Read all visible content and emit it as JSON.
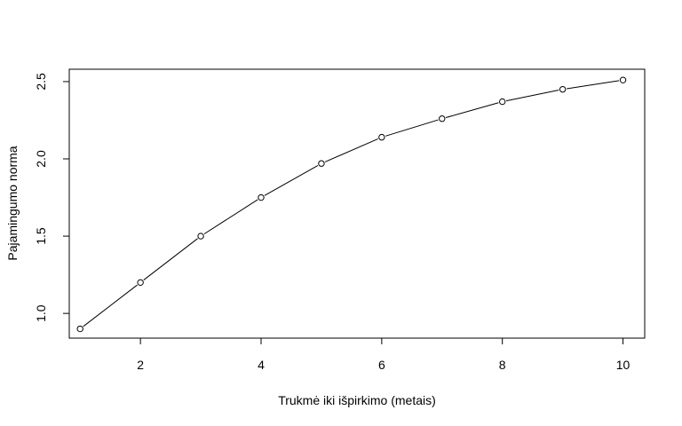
{
  "chart_data": {
    "type": "line",
    "title": "",
    "xlabel": "Trukmė iki išpirkimo (metais)",
    "ylabel": "Pajamingumo norma",
    "x": [
      1,
      2,
      3,
      4,
      5,
      6,
      7,
      8,
      9,
      10
    ],
    "series": [
      {
        "name": "",
        "values": [
          0.9,
          1.2,
          1.5,
          1.75,
          1.97,
          2.14,
          2.26,
          2.37,
          2.45,
          2.51
        ]
      }
    ],
    "xlim": [
      0.82,
      10.36
    ],
    "ylim": [
      0.84,
      2.58
    ],
    "x_ticks": [
      2,
      4,
      6,
      8,
      10
    ],
    "x_tick_labels": [
      "2",
      "4",
      "6",
      "8",
      "10"
    ],
    "y_ticks": [
      1.0,
      1.5,
      2.0,
      2.5
    ],
    "y_tick_labels": [
      "1.0",
      "1.5",
      "2.0",
      "2.5"
    ],
    "markers": "open-circle",
    "line_color": "#000000",
    "grid": false,
    "legend": "none"
  }
}
